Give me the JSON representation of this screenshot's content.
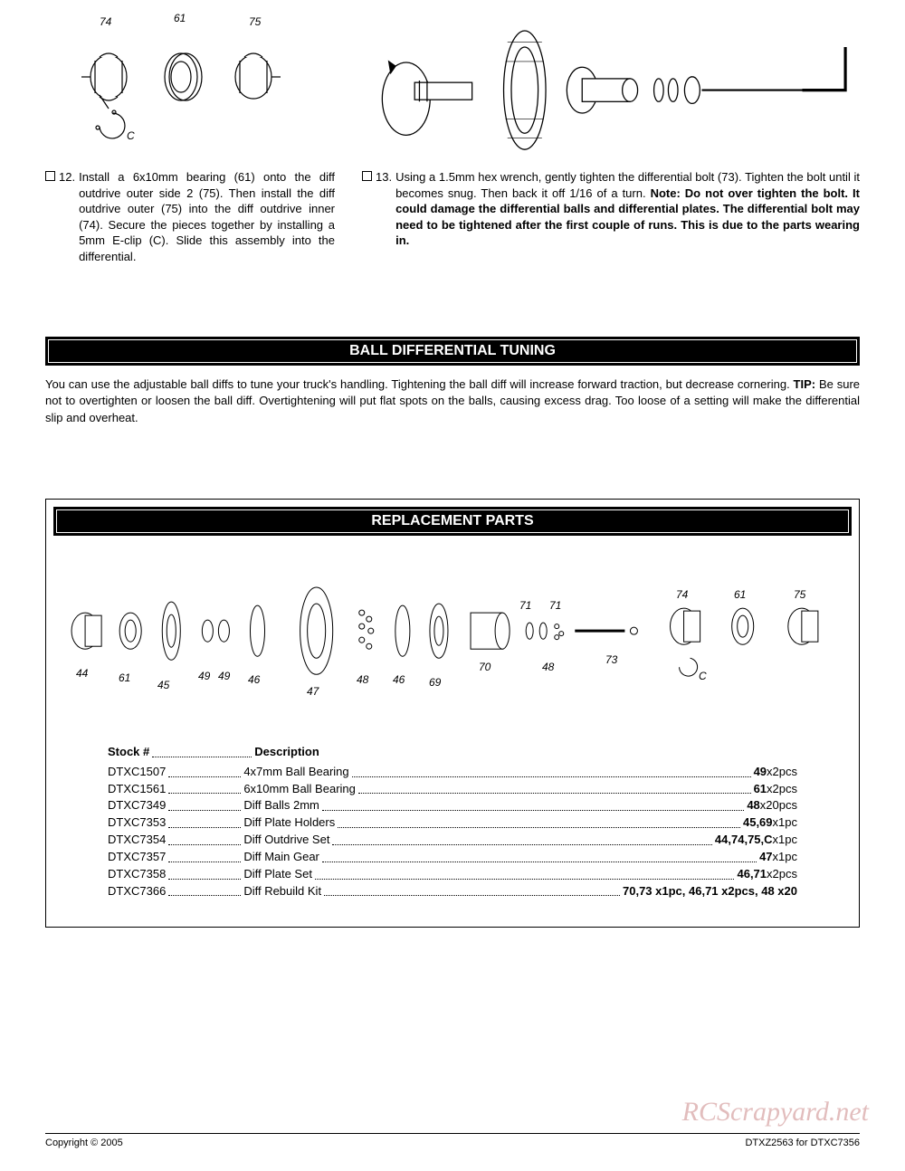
{
  "diagram1": {
    "labels": {
      "a": "74",
      "b": "61",
      "c": "75",
      "d": "C"
    }
  },
  "step12": {
    "num": "12.",
    "body": "Install a 6x10mm bearing (61) onto the diff outdrive outer side 2 (75). Then install the diff outdrive outer (75) into the diff outdrive inner (74). Secure the pieces together by installing a 5mm E-clip (C). Slide this assembly into the differential."
  },
  "step13": {
    "num": "13.",
    "body_a": "Using a 1.5mm hex wrench, gently tighten the differential bolt (73). Tighten the bolt until it becomes snug. Then back it off 1/16 of a turn. ",
    "body_b": "Note: Do not over tighten the bolt. It could damage the differential balls and differential plates. The differential bolt may need to be tightened after the first couple of runs. This is due to the parts wearing in."
  },
  "tuning": {
    "title": "BALL DIFFERENTIAL TUNING",
    "text_a": "You can use the adjustable ball diffs to tune your truck's handling. Tightening the ball diff will increase forward traction, but decrease cornering. ",
    "tip_label": "TIP:",
    "text_b": " Be sure not to overtighten or loosen the ball diff. Overtightening will put flat spots on the balls, causing excess drag. Too loose of a setting will make the differential slip and overheat."
  },
  "replacement": {
    "title": "REPLACEMENT PARTS",
    "header_stock": "Stock #",
    "header_desc": "Description",
    "labels": {
      "p44": "44",
      "p61a": "61",
      "p45": "45",
      "p49a": "49",
      "p49b": "49",
      "p46a": "46",
      "p47": "47",
      "p48a": "48",
      "p46b": "46",
      "p69": "69",
      "p70": "70",
      "p48b": "48",
      "p71a": "71",
      "p71b": "71",
      "p73": "73",
      "p74": "74",
      "p61b": "61",
      "p75": "75",
      "pC": "C"
    },
    "rows": [
      {
        "stock": "DTXC1507",
        "desc": "4x7mm Ball Bearing",
        "qty": "49",
        "suffix": " x2pcs"
      },
      {
        "stock": "DTXC1561",
        "desc": "6x10mm Ball Bearing",
        "qty": "61",
        "suffix": " x2pcs"
      },
      {
        "stock": "DTXC7349",
        "desc": "Diff Balls 2mm",
        "qty": "48",
        "suffix": " x20pcs"
      },
      {
        "stock": "DTXC7353",
        "desc": "Diff Plate Holders",
        "qty": "45,69",
        "suffix": " x1pc"
      },
      {
        "stock": "DTXC7354",
        "desc": "Diff Outdrive Set",
        "qty": "44,74,75,C",
        "suffix": " x1pc"
      },
      {
        "stock": "DTXC7357",
        "desc": "Diff Main Gear",
        "qty": "47",
        "suffix": " x1pc"
      },
      {
        "stock": "DTXC7358",
        "desc": "Diff Plate Set",
        "qty": "46,71",
        "suffix": " x2pcs"
      },
      {
        "stock": "DTXC7366",
        "desc": "Diff Rebuild Kit",
        "qty": "70,73 x1pc, 46,71 x2pcs, 48 x20",
        "suffix": ""
      }
    ]
  },
  "footer": {
    "copyright": "Copyright © 2005",
    "docid": "DTXZ2563 for DTXC7356"
  },
  "watermark": "RCScrapyard.net",
  "colors": {
    "text": "#000000",
    "bg": "#ffffff",
    "watermark": "#d9a8a8"
  }
}
